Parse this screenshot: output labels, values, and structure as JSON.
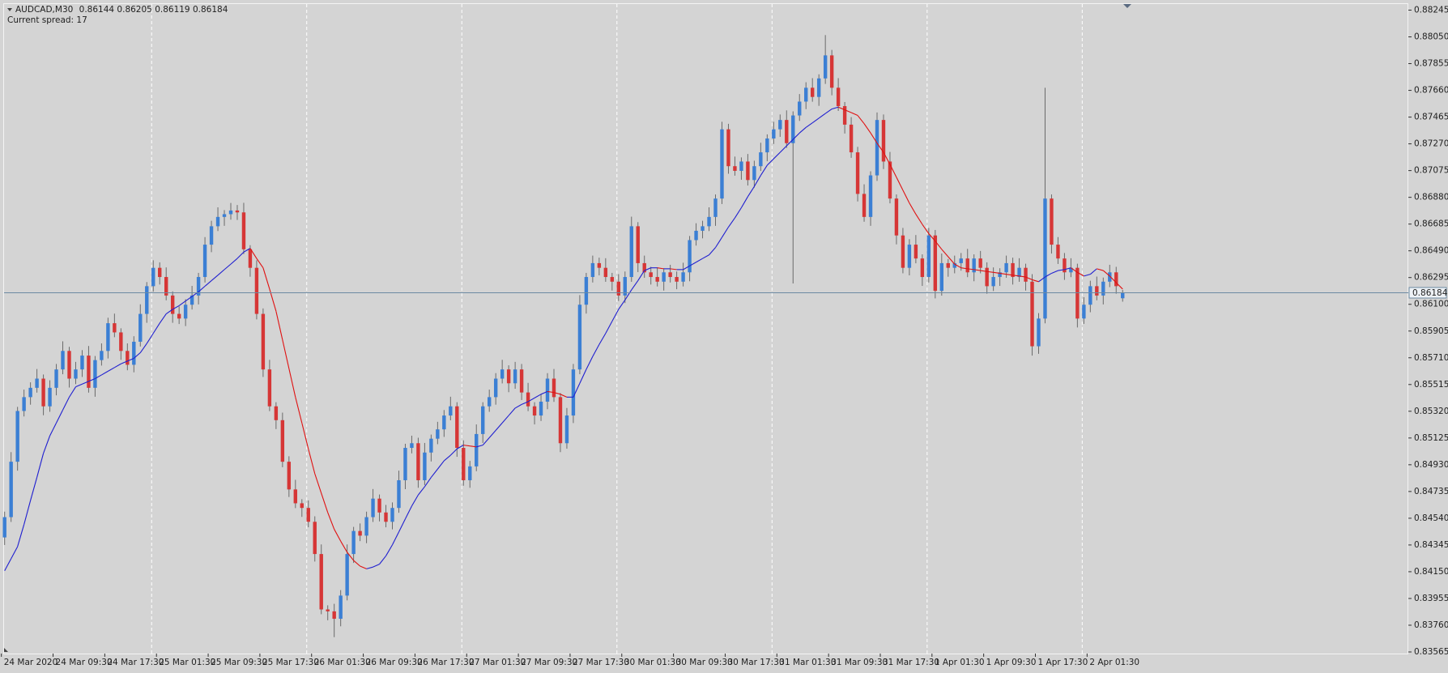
{
  "chart_data": {
    "type": "candlestick",
    "symbol": "AUDCAD,M30",
    "spread_label": "Current spread: 17",
    "up_color": "#3b7fd4",
    "down_color": "#d63636",
    "wick_color": "#6a6a6a",
    "grid": true,
    "ylim": [
      0.83565,
      0.88245
    ],
    "yticks": [
      0.88245,
      {
        "value": 0.8805,
        "label": "0.88050"
      },
      0.87855,
      {
        "value": 0.8766,
        "label": "0.87660"
      },
      0.87465,
      {
        "value": 0.8727,
        "label": "0.87270"
      },
      0.87075,
      {
        "value": 0.8688,
        "label": "0.86880"
      },
      0.86685,
      {
        "value": 0.8649,
        "label": "0.86490"
      },
      0.86295,
      {
        "value": 0.861,
        "label": "0.86100"
      },
      0.85905,
      {
        "value": 0.8571,
        "label": "0.85710"
      },
      0.85515,
      {
        "value": 0.8532,
        "label": "0.85320"
      },
      0.85125,
      {
        "value": 0.8493,
        "label": "0.84930"
      },
      0.84735,
      {
        "value": 0.8454,
        "label": "0.84540"
      },
      0.84345,
      {
        "value": 0.8415,
        "label": "0.84150"
      },
      0.83955,
      {
        "value": 0.8376,
        "label": "0.83760"
      },
      0.83565
    ],
    "categories": [
      "24 Mar 2020",
      null,
      null,
      null,
      null,
      null,
      null,
      null,
      "24 Mar 09:30",
      null,
      null,
      null,
      null,
      null,
      null,
      null,
      "24 Mar 17:30",
      null,
      null,
      null,
      null,
      null,
      null,
      null,
      "25 Mar 01:30",
      null,
      null,
      null,
      null,
      null,
      null,
      null,
      "25 Mar 09:30",
      null,
      null,
      null,
      null,
      null,
      null,
      null,
      "25 Mar 17:30",
      null,
      null,
      null,
      null,
      null,
      null,
      null,
      "26 Mar 01:30",
      null,
      null,
      null,
      null,
      null,
      null,
      null,
      "26 Mar 09:30",
      null,
      null,
      null,
      null,
      null,
      null,
      null,
      "26 Mar 17:30",
      null,
      null,
      null,
      null,
      null,
      null,
      null,
      "27 Mar 01:30",
      null,
      null,
      null,
      null,
      null,
      null,
      null,
      "27 Mar 09:30",
      null,
      null,
      null,
      null,
      null,
      null,
      null,
      "27 Mar 17:30",
      null,
      null,
      null,
      null,
      null,
      null,
      null,
      "30 Mar 01:30",
      null,
      null,
      null,
      null,
      null,
      null,
      null,
      "30 Mar 09:30",
      null,
      null,
      null,
      null,
      null,
      null,
      null,
      "30 Mar 17:30",
      null,
      null,
      null,
      null,
      null,
      null,
      null,
      "31 Mar 01:30",
      null,
      null,
      null,
      null,
      null,
      null,
      null,
      "31 Mar 09:30",
      null,
      null,
      null,
      null,
      null,
      null,
      null,
      "31 Mar 17:30",
      null,
      null,
      null,
      null,
      null,
      null,
      null,
      "1 Apr 01:30",
      null,
      null,
      null,
      null,
      null,
      null,
      null,
      "1 Apr 09:30",
      null,
      null,
      null,
      null,
      null,
      null,
      null,
      "1 Apr 17:30",
      null,
      null,
      null,
      null,
      null,
      null,
      null,
      "2 Apr 01:30",
      null,
      null,
      null,
      null,
      null
    ],
    "open": [
      0.844,
      0.84548,
      0.84952,
      0.85322,
      0.85423,
      0.85491,
      0.85558,
      0.85356,
      0.85491,
      0.85625,
      0.8576,
      0.85558,
      0.85625,
      0.85726,
      0.85491,
      0.85693,
      0.8576,
      0.85962,
      0.85895,
      0.8576,
      0.85659,
      0.85827,
      0.8603,
      0.86232,
      0.86366,
      0.86299,
      0.86164,
      0.8603,
      0.85996,
      0.86097,
      0.86164,
      0.86299,
      0.86535,
      0.86669,
      0.86737,
      0.86757,
      0.86784,
      0.8677,
      0.86501,
      0.86366,
      0.8603,
      0.85625,
      0.85356,
      0.85255,
      0.84952,
      0.8475,
      0.84649,
      0.84615,
      0.84514,
      0.84279,
      0.83875,
      0.83861,
      0.83807,
      0.83976,
      0.84279,
      0.84447,
      0.84413,
      0.84548,
      0.84683,
      0.84582,
      0.84514,
      0.84615,
      0.84817,
      0.85053,
      0.85087,
      0.84817,
      0.85019,
      0.8512,
      0.85188,
      0.85289,
      0.85356,
      0.85053,
      0.84817,
      0.84918,
      0.85154,
      0.85356,
      0.85423,
      0.85558,
      0.85625,
      0.85524,
      0.85625,
      0.85457,
      0.85356,
      0.85289,
      0.8539,
      0.85558,
      0.85423,
      0.85087,
      0.85289,
      0.85625,
      0.86097,
      0.86299,
      0.864,
      0.86366,
      0.86299,
      0.86265,
      0.86164,
      0.86299,
      0.86669,
      0.864,
      0.86333,
      0.86299,
      0.86265,
      0.86333,
      0.86299,
      0.86265,
      0.86333,
      0.86568,
      0.86636,
      0.86669,
      0.86737,
      0.86871,
      0.87376,
      0.87107,
      0.87073,
      0.87141,
      0.87006,
      0.87107,
      0.87208,
      0.87309,
      0.87376,
      0.87444,
      0.87275,
      0.87477,
      0.87578,
      0.87679,
      0.87612,
      0.87747,
      0.87915,
      0.87679,
      0.87545,
      0.8741,
      0.87208,
      0.86905,
      0.86737,
      0.8704,
      0.87444,
      0.87141,
      0.86871,
      0.86602,
      0.86366,
      0.86535,
      0.86434,
      0.86299,
      0.86602,
      0.86198,
      0.864,
      0.86366,
      0.864,
      0.86434,
      0.86333,
      0.86434,
      0.86366,
      0.86232,
      0.86299,
      0.86333,
      0.864,
      0.86299,
      0.86366,
      0.86265,
      0.85794,
      0.85996,
      0.86871,
      0.86535,
      0.86434,
      0.86333,
      0.86366,
      0.85996,
      0.86097,
      0.86232,
      0.86164,
      0.86265,
      0.86333,
      0.86144
    ],
    "high": [
      0.84588,
      0.85022,
      0.85352,
      0.85478,
      0.85531,
      0.85628,
      0.85588,
      0.85546,
      0.85665,
      0.8583,
      0.8579,
      0.8568,
      0.85766,
      0.85796,
      0.85723,
      0.85815,
      0.86002,
      0.86032,
      0.85925,
      0.85815,
      0.85867,
      0.861,
      0.86262,
      0.86421,
      0.86406,
      0.86369,
      0.86194,
      0.86085,
      0.86137,
      0.86234,
      0.86329,
      0.8659,
      0.86709,
      0.86807,
      0.86787,
      0.86839,
      0.86824,
      0.8684,
      0.86531,
      0.86421,
      0.8607,
      0.85695,
      0.85386,
      0.8531,
      0.84992,
      0.8482,
      0.84679,
      0.8467,
      0.84554,
      0.84349,
      0.83905,
      0.83916,
      0.84016,
      0.84349,
      0.84477,
      0.84502,
      0.84588,
      0.84753,
      0.84713,
      0.84637,
      0.84655,
      0.84887,
      0.85083,
      0.85142,
      0.85127,
      0.85089,
      0.8515,
      0.85243,
      0.85329,
      0.85426,
      0.85386,
      0.85108,
      0.84958,
      0.85224,
      0.85386,
      0.85478,
      0.85598,
      0.85695,
      0.85655,
      0.8568,
      0.85665,
      0.85527,
      0.85386,
      0.85445,
      0.85598,
      0.85628,
      0.85453,
      0.85344,
      0.85665,
      0.86167,
      0.86329,
      0.86455,
      0.8644,
      0.86436,
      0.86329,
      0.8632,
      0.86339,
      0.86739,
      0.86699,
      0.86455,
      0.86373,
      0.86369,
      0.86363,
      0.86388,
      0.86339,
      0.86403,
      0.86598,
      0.86691,
      0.86709,
      0.86807,
      0.86901,
      0.87431,
      0.87416,
      0.87177,
      0.87171,
      0.87196,
      0.87147,
      0.87278,
      0.87339,
      0.87431,
      0.87484,
      0.87514,
      0.87507,
      0.87633,
      0.87719,
      0.87749,
      0.87777,
      0.88063,
      0.87955,
      0.87749,
      0.87575,
      0.87465,
      0.87248,
      0.86975,
      0.8707,
      0.87499,
      0.87484,
      0.87211,
      0.86901,
      0.86657,
      0.86575,
      0.86605,
      0.86464,
      0.86657,
      0.86642,
      0.8647,
      0.8643,
      0.86455,
      0.86474,
      0.86504,
      0.86464,
      0.86489,
      0.86406,
      0.86369,
      0.86363,
      0.86455,
      0.8644,
      0.86436,
      0.86396,
      0.8632,
      0.86036,
      0.87679,
      0.86901,
      0.8659,
      0.86474,
      0.86436,
      0.86396,
      0.86152,
      0.86272,
      0.86302,
      0.86295,
      0.86388,
      0.86373,
      0.86205
    ],
    "low": [
      0.84345,
      0.84513,
      0.84887,
      0.85282,
      0.85368,
      0.85456,
      0.85291,
      0.85316,
      0.85436,
      0.8559,
      0.85493,
      0.85518,
      0.8557,
      0.85456,
      0.85426,
      0.85653,
      0.85705,
      0.8586,
      0.85695,
      0.85619,
      0.85604,
      0.85792,
      0.85965,
      0.86192,
      0.86244,
      0.86129,
      0.85965,
      0.85956,
      0.85941,
      0.86062,
      0.86099,
      0.86259,
      0.8648,
      0.86634,
      0.86672,
      0.86717,
      0.86715,
      0.86466,
      0.86301,
      0.8599,
      0.8557,
      0.85321,
      0.8519,
      0.84912,
      0.84695,
      0.84614,
      0.8455,
      0.84474,
      0.84224,
      0.8384,
      0.83796,
      0.83673,
      0.83752,
      0.83941,
      0.84214,
      0.84373,
      0.84358,
      0.84513,
      0.84517,
      0.84474,
      0.84459,
      0.8458,
      0.84752,
      0.85013,
      0.84762,
      0.84782,
      0.84954,
      0.8508,
      0.85133,
      0.85254,
      0.84988,
      0.84777,
      0.84762,
      0.84883,
      0.85089,
      0.85316,
      0.85368,
      0.85523,
      0.85459,
      0.85484,
      0.85402,
      0.85321,
      0.85224,
      0.85249,
      0.85335,
      0.85388,
      0.85022,
      0.85047,
      0.85234,
      0.8559,
      0.86032,
      0.86259,
      0.86311,
      0.86264,
      0.862,
      0.86124,
      0.86109,
      0.86264,
      0.86335,
      0.86293,
      0.86244,
      0.8623,
      0.862,
      0.86259,
      0.8621,
      0.8623,
      0.86268,
      0.86528,
      0.86581,
      0.86634,
      0.86672,
      0.86831,
      0.87052,
      0.87038,
      0.87008,
      0.86966,
      0.86951,
      0.87072,
      0.87143,
      0.87269,
      0.87321,
      0.8724,
      0.86252,
      0.87437,
      0.87523,
      0.87577,
      0.87547,
      0.87707,
      0.87624,
      0.8751,
      0.87345,
      0.87168,
      0.8685,
      0.86702,
      0.86672,
      0.87,
      0.87086,
      0.86836,
      0.86537,
      0.86326,
      0.86311,
      0.86399,
      0.86234,
      0.86259,
      0.86143,
      0.86163,
      0.86301,
      0.86326,
      0.86345,
      0.86298,
      0.86268,
      0.86326,
      0.86177,
      0.86197,
      0.86234,
      0.86293,
      0.86244,
      0.86264,
      0.862,
      0.85726,
      0.85739,
      0.85961,
      0.8647,
      0.86394,
      0.86278,
      0.86298,
      0.85931,
      0.85957,
      0.86042,
      0.86129,
      0.86099,
      0.86225,
      0.86177,
      0.86119
    ],
    "close": [
      0.84548,
      0.84952,
      0.85322,
      0.85423,
      0.85491,
      0.85558,
      0.85356,
      0.85491,
      0.85625,
      0.8576,
      0.85558,
      0.85625,
      0.85726,
      0.85491,
      0.85693,
      0.8576,
      0.85962,
      0.85895,
      0.8576,
      0.85659,
      0.85827,
      0.8603,
      0.86232,
      0.86366,
      0.86299,
      0.86164,
      0.8603,
      0.85996,
      0.86097,
      0.86164,
      0.86299,
      0.86535,
      0.86669,
      0.86737,
      0.86757,
      0.86784,
      0.8677,
      0.86501,
      0.86366,
      0.8603,
      0.85625,
      0.85356,
      0.85255,
      0.84952,
      0.8475,
      0.84649,
      0.84615,
      0.84514,
      0.84279,
      0.83875,
      0.83861,
      0.83807,
      0.83976,
      0.84279,
      0.84447,
      0.84413,
      0.84548,
      0.84683,
      0.84582,
      0.84514,
      0.84615,
      0.84817,
      0.85053,
      0.85087,
      0.84817,
      0.85019,
      0.8512,
      0.85188,
      0.85289,
      0.85356,
      0.85053,
      0.84817,
      0.84918,
      0.85154,
      0.85356,
      0.85423,
      0.85558,
      0.85625,
      0.85524,
      0.85625,
      0.85457,
      0.85356,
      0.85289,
      0.8539,
      0.85558,
      0.85423,
      0.85087,
      0.85289,
      0.85625,
      0.86097,
      0.86299,
      0.864,
      0.86366,
      0.86299,
      0.86265,
      0.86164,
      0.86299,
      0.86669,
      0.864,
      0.86333,
      0.86299,
      0.86265,
      0.86333,
      0.86299,
      0.86265,
      0.86333,
      0.86568,
      0.86636,
      0.86669,
      0.86737,
      0.86871,
      0.87376,
      0.87107,
      0.87073,
      0.87141,
      0.87006,
      0.87107,
      0.87208,
      0.87309,
      0.87376,
      0.87444,
      0.87275,
      0.87477,
      0.87578,
      0.87679,
      0.87612,
      0.87747,
      0.87915,
      0.87679,
      0.87545,
      0.8741,
      0.87208,
      0.86905,
      0.86737,
      0.8704,
      0.87444,
      0.87141,
      0.86871,
      0.86602,
      0.86366,
      0.86535,
      0.86434,
      0.86299,
      0.86602,
      0.86198,
      0.864,
      0.86366,
      0.864,
      0.86434,
      0.86333,
      0.86434,
      0.86366,
      0.86232,
      0.86299,
      0.86333,
      0.864,
      0.86299,
      0.86366,
      0.86265,
      0.85794,
      0.85996,
      0.86871,
      0.86535,
      0.86434,
      0.86333,
      0.86366,
      0.85996,
      0.86097,
      0.86232,
      0.86164,
      0.86265,
      0.86333,
      0.86232,
      0.86184
    ],
    "ma": {
      "rise_color": "#1f1fd0",
      "fall_color": "#e01010",
      "values": [
        0.84157,
        0.84245,
        0.84333,
        0.84494,
        0.84669,
        0.84838,
        0.85013,
        0.85141,
        0.85235,
        0.85329,
        0.85423,
        0.85498,
        0.85518,
        0.85538,
        0.85558,
        0.85585,
        0.85612,
        0.85639,
        0.85666,
        0.85686,
        0.85706,
        0.85747,
        0.85814,
        0.85888,
        0.85962,
        0.8603,
        0.86063,
        0.8609,
        0.86124,
        0.86157,
        0.86191,
        0.86232,
        0.86272,
        0.86312,
        0.86353,
        0.86393,
        0.86434,
        0.86481,
        0.86508,
        0.86434,
        0.86366,
        0.86211,
        0.8605,
        0.85841,
        0.85632,
        0.85423,
        0.85235,
        0.85046,
        0.84865,
        0.84723,
        0.84582,
        0.8446,
        0.84373,
        0.84292,
        0.84232,
        0.84191,
        0.84171,
        0.84184,
        0.84205,
        0.84265,
        0.84346,
        0.8444,
        0.84535,
        0.84629,
        0.8471,
        0.8477,
        0.84838,
        0.84898,
        0.84959,
        0.84999,
        0.85046,
        0.85073,
        0.85067,
        0.8506,
        0.85073,
        0.85127,
        0.85181,
        0.85235,
        0.85289,
        0.85343,
        0.8537,
        0.8539,
        0.85417,
        0.85444,
        0.85464,
        0.85457,
        0.85444,
        0.85423,
        0.85423,
        0.85524,
        0.85625,
        0.8572,
        0.85807,
        0.85888,
        0.85976,
        0.86063,
        0.86131,
        0.86205,
        0.86272,
        0.86346,
        0.86366,
        0.86366,
        0.86359,
        0.86359,
        0.86353,
        0.86353,
        0.8638,
        0.86407,
        0.86434,
        0.8646,
        0.86514,
        0.86588,
        0.86663,
        0.8673,
        0.86804,
        0.86885,
        0.86959,
        0.8704,
        0.87114,
        0.87161,
        0.87208,
        0.87255,
        0.87302,
        0.87349,
        0.8739,
        0.87423,
        0.87457,
        0.87491,
        0.87524,
        0.87538,
        0.87518,
        0.87498,
        0.87477,
        0.87417,
        0.87349,
        0.87275,
        0.87208,
        0.8712,
        0.87026,
        0.86932,
        0.86838,
        0.86757,
        0.86683,
        0.86615,
        0.86561,
        0.86501,
        0.86447,
        0.86393,
        0.86366,
        0.86359,
        0.86353,
        0.86346,
        0.86339,
        0.86333,
        0.86326,
        0.86319,
        0.86312,
        0.86306,
        0.86299,
        0.86279,
        0.86265,
        0.86299,
        0.86326,
        0.86346,
        0.86353,
        0.86366,
        0.86333,
        0.86306,
        0.86319,
        0.86359,
        0.86346,
        0.86306,
        0.86258,
        0.86211
      ]
    }
  }
}
